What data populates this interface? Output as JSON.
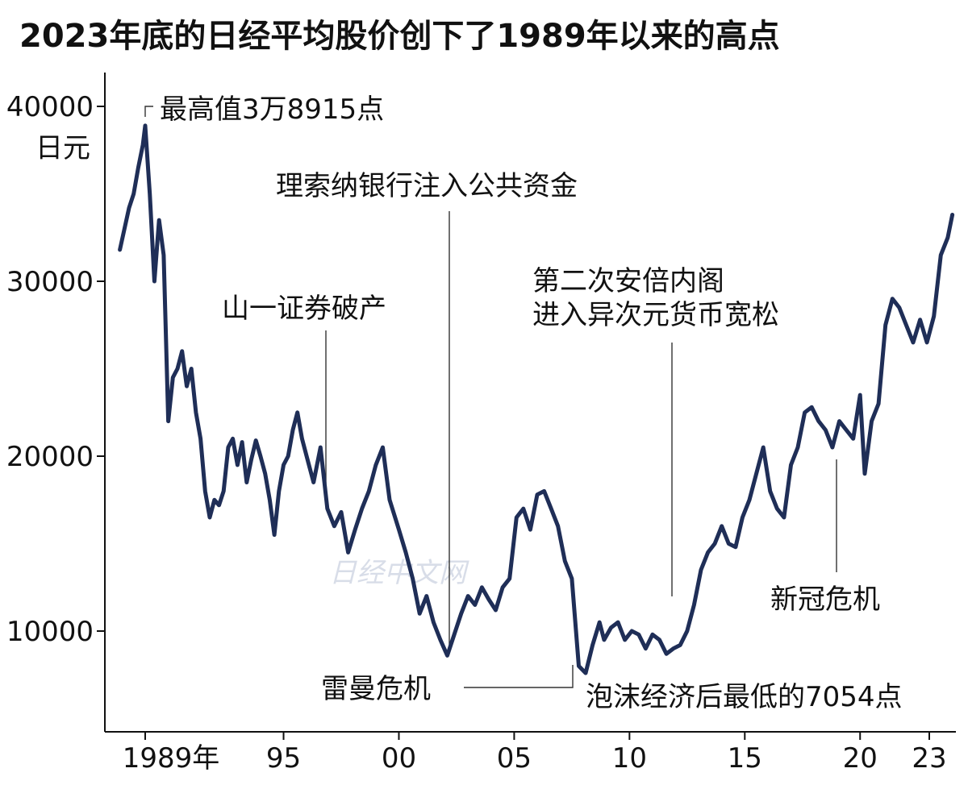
{
  "chart_data": {
    "type": "line",
    "title": "2023年底的日经平均股价创下了1989年以来的高点",
    "ylabel": "日元",
    "ylim": [
      3000,
      43000
    ],
    "xlim": [
      1987.9,
      2024.2
    ],
    "yticks": [
      10000,
      20000,
      30000,
      40000
    ],
    "ytick_labels": [
      "10000",
      "20000",
      "30000",
      "40000"
    ],
    "xticks": [
      1989,
      1995,
      2000,
      2005,
      2010,
      2015,
      2020,
      2023
    ],
    "xtick_labels": [
      "1989年",
      "95",
      "00",
      "05",
      "10",
      "15",
      "20",
      "23"
    ],
    "series": [
      {
        "line_color": "#1f2e57",
        "x": [
          1987.9,
          1988.1,
          1988.3,
          1988.5,
          1988.7,
          1988.9,
          1989.0,
          1989.2,
          1989.4,
          1989.6,
          1989.8,
          1990.0,
          1990.2,
          1990.4,
          1990.6,
          1990.8,
          1991.0,
          1991.2,
          1991.4,
          1991.6,
          1991.8,
          1992.0,
          1992.2,
          1992.4,
          1992.6,
          1992.8,
          1993.0,
          1993.2,
          1993.4,
          1993.6,
          1993.8,
          1994.0,
          1994.2,
          1994.4,
          1994.6,
          1994.8,
          1995.0,
          1995.2,
          1995.4,
          1995.6,
          1995.8,
          1996.0,
          1996.3,
          1996.6,
          1996.9,
          1997.2,
          1997.5,
          1997.8,
          1998.1,
          1998.4,
          1998.7,
          1999.0,
          1999.3,
          1999.6,
          2000.0,
          2000.3,
          2000.6,
          2000.9,
          2001.2,
          2001.5,
          2001.8,
          2002.1,
          2002.4,
          2002.7,
          2003.0,
          2003.3,
          2003.6,
          2003.9,
          2004.2,
          2004.5,
          2004.8,
          2005.1,
          2005.4,
          2005.7,
          2006.0,
          2006.3,
          2006.6,
          2006.9,
          2007.2,
          2007.5,
          2007.8,
          2008.1,
          2008.4,
          2008.7,
          2008.9,
          2009.2,
          2009.5,
          2009.8,
          2010.1,
          2010.4,
          2010.7,
          2011.0,
          2011.3,
          2011.6,
          2011.9,
          2012.2,
          2012.5,
          2012.8,
          2013.1,
          2013.4,
          2013.7,
          2014.0,
          2014.3,
          2014.6,
          2014.9,
          2015.2,
          2015.5,
          2015.8,
          2016.1,
          2016.4,
          2016.7,
          2017.0,
          2017.3,
          2017.6,
          2017.9,
          2018.2,
          2018.5,
          2018.8,
          2019.1,
          2019.4,
          2019.7,
          2020.0,
          2020.2,
          2020.5,
          2020.8,
          2021.1,
          2021.4,
          2021.7,
          2022.0,
          2022.3,
          2022.6,
          2022.9,
          2023.2,
          2023.5,
          2023.8,
          2024.0
        ],
        "values": [
          31800,
          33000,
          34200,
          35000,
          36500,
          37800,
          38900,
          35000,
          30000,
          33500,
          31500,
          22000,
          24500,
          25000,
          26000,
          24000,
          25000,
          22500,
          21000,
          18000,
          16500,
          17500,
          17200,
          18000,
          20500,
          21000,
          19500,
          20800,
          18500,
          19800,
          20900,
          20000,
          19000,
          17500,
          15500,
          18000,
          19500,
          20000,
          21500,
          22500,
          21000,
          20000,
          18500,
          20500,
          17000,
          16000,
          16800,
          14500,
          15800,
          17000,
          18000,
          19500,
          20500,
          17500,
          15800,
          14500,
          13000,
          11000,
          12000,
          10500,
          9500,
          8600,
          9800,
          11000,
          12000,
          11500,
          12500,
          11800,
          11200,
          12500,
          13000,
          16500,
          17000,
          15800,
          17800,
          18000,
          17000,
          16000,
          14000,
          13000,
          8000,
          7600,
          9200,
          10500,
          9500,
          10200,
          10500,
          9500,
          10000,
          9800,
          9000,
          9800,
          9500,
          8700,
          9000,
          9200,
          10000,
          11500,
          13500,
          14500,
          15000,
          16000,
          15000,
          14800,
          16500,
          17500,
          19000,
          20500,
          18000,
          17000,
          16500,
          19500,
          20500,
          22500,
          22800,
          22000,
          21500,
          20500,
          22000,
          21500,
          21000,
          23500,
          19000,
          22000,
          23000,
          27500,
          29000,
          28500,
          27500,
          26500,
          27800,
          26500,
          28000,
          31500,
          32500,
          33800
        ]
      }
    ],
    "annotations": [
      {
        "text": "最高值3万8915点"
      },
      {
        "text": "理索纳银行注入公共资金"
      },
      {
        "text": "山一证券破产"
      },
      {
        "text": "第二次安倍内阁"
      },
      {
        "text": "进入异次元货币宽松"
      },
      {
        "text": "新冠危机"
      },
      {
        "text": "雷曼危机"
      },
      {
        "text": "泡沫经济后最低的7054点"
      }
    ],
    "watermark": "日经中文网"
  }
}
